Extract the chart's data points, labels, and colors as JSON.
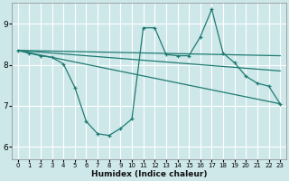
{
  "bg_color": "#cee8ea",
  "grid_color": "#ffffff",
  "line_color": "#1e7b72",
  "xlabel": "Humidex (Indice chaleur)",
  "xlim": [
    -0.5,
    23.5
  ],
  "ylim": [
    5.7,
    9.5
  ],
  "yticks": [
    6,
    7,
    8,
    9
  ],
  "xticks": [
    0,
    1,
    2,
    3,
    4,
    5,
    6,
    7,
    8,
    9,
    10,
    11,
    12,
    13,
    14,
    15,
    16,
    17,
    18,
    19,
    20,
    21,
    22,
    23
  ],
  "series_main": {
    "x": [
      0,
      1,
      2,
      3,
      4,
      5,
      6,
      7,
      8,
      9,
      10,
      11,
      12,
      13,
      14,
      15,
      16,
      17,
      18,
      19,
      20,
      21,
      22,
      23
    ],
    "y": [
      8.35,
      8.28,
      8.22,
      8.18,
      8.02,
      7.45,
      6.62,
      6.32,
      6.28,
      6.45,
      6.68,
      8.9,
      8.9,
      8.25,
      8.22,
      8.22,
      8.68,
      9.35,
      8.28,
      8.05,
      7.72,
      7.55,
      7.48,
      7.05
    ]
  },
  "trend1": {
    "x": [
      0,
      23
    ],
    "y": [
      8.35,
      8.22
    ]
  },
  "trend2": {
    "x": [
      0,
      23
    ],
    "y": [
      8.35,
      7.85
    ]
  },
  "trend3": {
    "x": [
      0,
      23
    ],
    "y": [
      8.35,
      7.05
    ]
  }
}
